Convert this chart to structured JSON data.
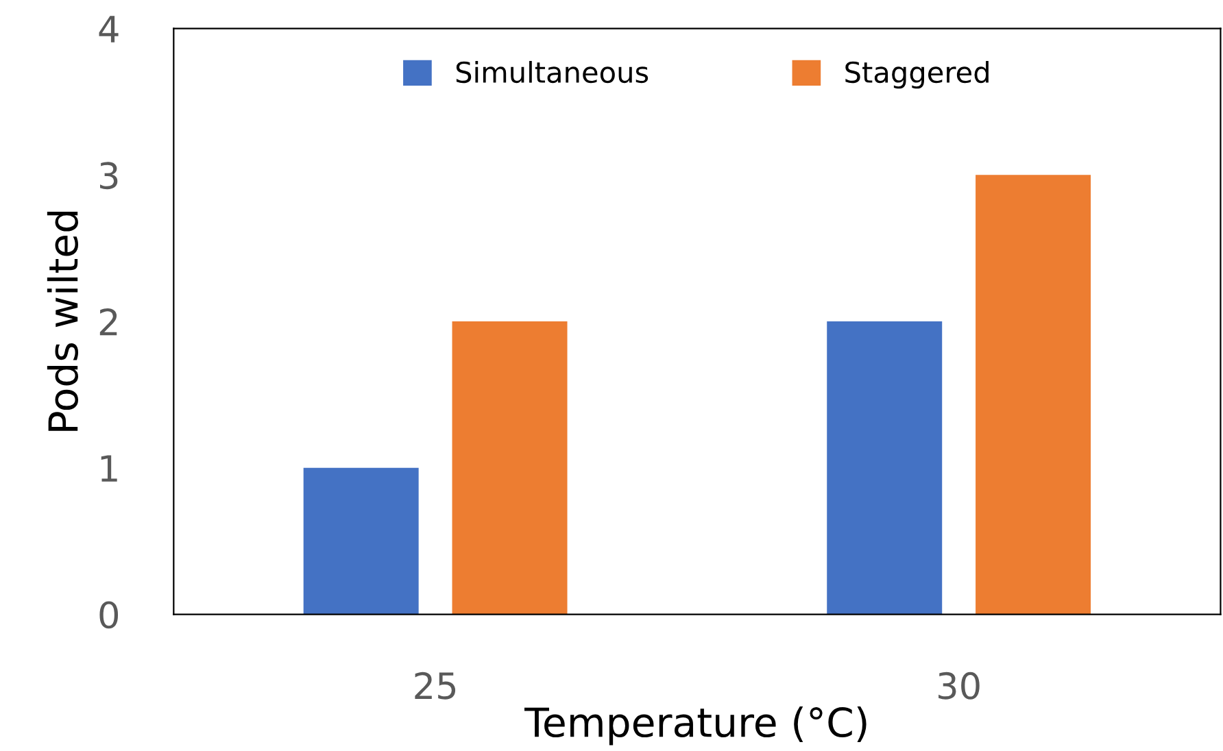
{
  "chart_data": {
    "type": "bar",
    "xlabel": "Temperature (°C)",
    "ylabel": "Pods wilted",
    "categories": [
      "25",
      "30"
    ],
    "series": [
      {
        "name": "Simultaneous",
        "color": "#4472c4",
        "values": [
          1,
          2
        ]
      },
      {
        "name": "Staggered",
        "color": "#ed7d31",
        "values": [
          2,
          3
        ]
      }
    ],
    "ylim": [
      0,
      4
    ],
    "yticks": [
      0,
      1,
      2,
      3,
      4
    ],
    "grid": false,
    "legend": "top"
  }
}
